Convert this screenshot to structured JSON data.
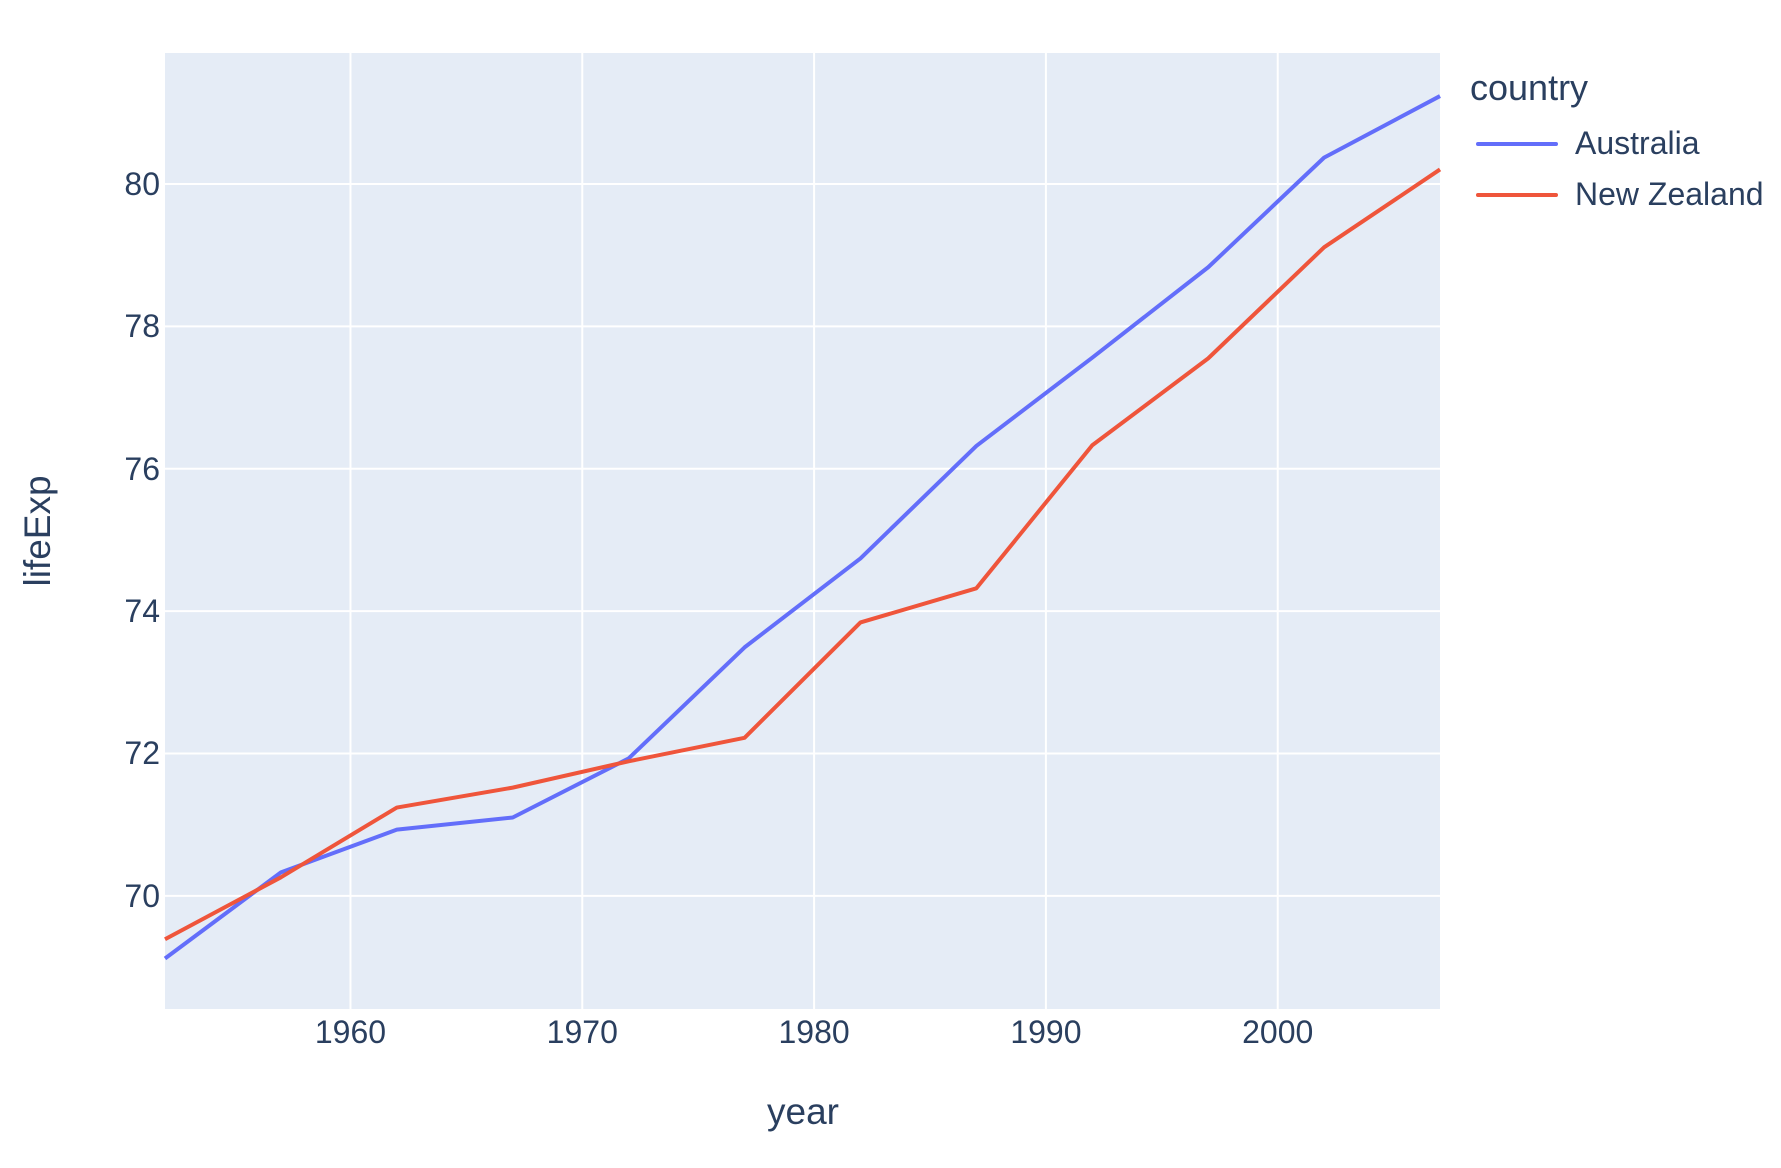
{
  "chart_data": {
    "type": "line",
    "title": "",
    "xlabel": "year",
    "ylabel": "lifeExp",
    "legend_title": "country",
    "x": [
      1952,
      1957,
      1962,
      1967,
      1972,
      1977,
      1982,
      1987,
      1992,
      1997,
      2002,
      2007
    ],
    "series": [
      {
        "name": "Australia",
        "color": "#636EFA",
        "values": [
          69.12,
          70.33,
          70.93,
          71.1,
          71.93,
          73.49,
          74.74,
          76.32,
          77.56,
          78.83,
          80.37,
          81.235
        ]
      },
      {
        "name": "New Zealand",
        "color": "#EF553B",
        "values": [
          69.39,
          70.26,
          71.24,
          71.52,
          71.89,
          72.22,
          73.84,
          74.32,
          76.33,
          77.55,
          79.11,
          80.204
        ]
      }
    ],
    "xlim": [
      1952,
      2007
    ],
    "ylim": [
      68.41,
      81.84
    ],
    "xticks": [
      1960,
      1970,
      1980,
      1990,
      2000
    ],
    "yticks": [
      70,
      72,
      74,
      76,
      78,
      80
    ],
    "grid": true,
    "legend_position": "right",
    "plot_bgcolor": "#E5ECF6",
    "paper_bgcolor": "#FFFFFF",
    "grid_color": "#FFFFFF",
    "text_color": "#2A3F5F",
    "line_width": 4
  }
}
